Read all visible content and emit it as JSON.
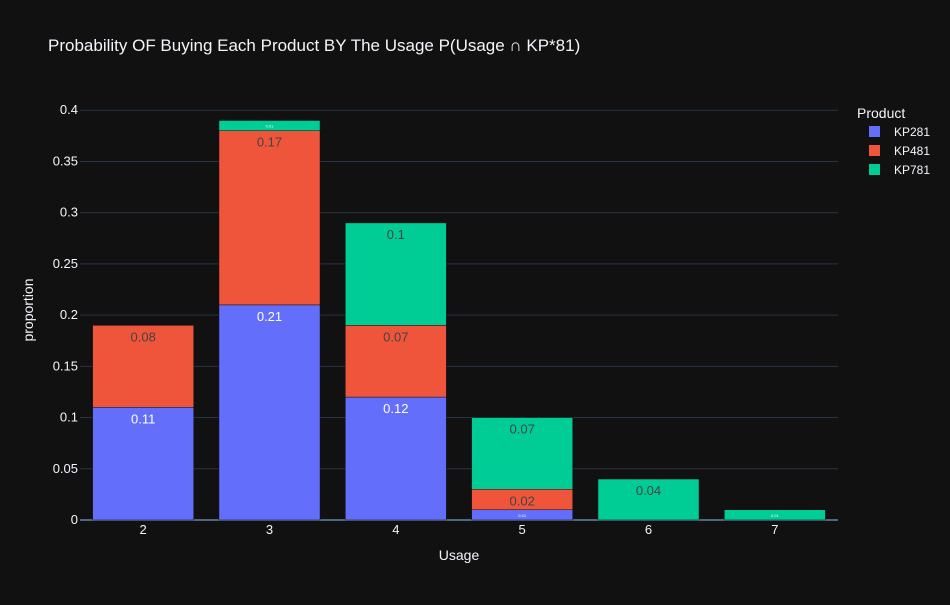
{
  "chart_data": {
    "type": "bar",
    "stacked": true,
    "title": "Probability OF Buying Each Product BY The Usage P(Usage ∩ KP*81)",
    "xlabel": "Usage",
    "ylabel": "proportion",
    "categories": [
      "2",
      "3",
      "4",
      "5",
      "6",
      "7"
    ],
    "ylim": [
      0,
      0.4
    ],
    "yticks": [
      "0",
      "0.05",
      "0.1",
      "0.15",
      "0.2",
      "0.25",
      "0.3",
      "0.35",
      "0.4"
    ],
    "grid": true,
    "legend_title": "Product",
    "legend_position": "top-right",
    "series": [
      {
        "name": "KP281",
        "color": "#636efa",
        "values": [
          0.11,
          0.21,
          0.12,
          0.01,
          0,
          0
        ],
        "labels": [
          "0.11",
          "0.21",
          "0.12",
          "0.01",
          "",
          ""
        ]
      },
      {
        "name": "KP481",
        "color": "#ef553b",
        "values": [
          0.08,
          0.17,
          0.07,
          0.02,
          0,
          0
        ],
        "labels": [
          "0.08",
          "0.17",
          "0.07",
          "0.02",
          "",
          ""
        ]
      },
      {
        "name": "KP781",
        "color": "#00cc96",
        "values": [
          0,
          0.01,
          0.1,
          0.07,
          0.04,
          0.01
        ],
        "labels": [
          "",
          "0.01",
          "0.1",
          "0.07",
          "0.04",
          "0.01"
        ]
      }
    ]
  }
}
